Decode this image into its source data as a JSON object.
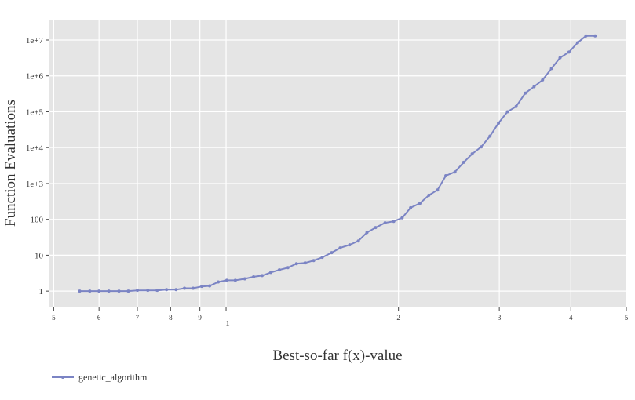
{
  "chart_data": {
    "type": "line",
    "xlabel": "Best-so-far f(x)-value",
    "ylabel": "Function Evaluations",
    "xscale": "log",
    "yscale": "log",
    "grid": true,
    "legend": "bottom-left",
    "xlim": [
      0.49,
      5.0
    ],
    "ylim": [
      0.35,
      37000000
    ],
    "xticks": [
      {
        "value": 0.5,
        "label": "5"
      },
      {
        "value": 0.6,
        "label": "6"
      },
      {
        "value": 0.7,
        "label": "7"
      },
      {
        "value": 0.8,
        "label": "8"
      },
      {
        "value": 0.9,
        "label": "9"
      },
      1,
      2,
      3,
      4,
      5
    ],
    "yticks": [
      1,
      10,
      100,
      {
        "value": 1000,
        "label": "1e+3"
      },
      {
        "value": 10000,
        "label": "1e+4"
      },
      {
        "value": 100000,
        "label": "1e+5"
      },
      {
        "value": 1000000,
        "label": "1e+6"
      },
      {
        "value": 10000000,
        "label": "1e+7"
      }
    ],
    "x": [
      0.555,
      0.578,
      0.6,
      0.624,
      0.65,
      0.675,
      0.7,
      0.73,
      0.758,
      0.787,
      0.818,
      0.846,
      0.876,
      0.907,
      0.936,
      0.969,
      1.003,
      1.038,
      1.078,
      1.117,
      1.156,
      1.197,
      1.239,
      1.282,
      1.327,
      1.374,
      1.422,
      1.472,
      1.529,
      1.582,
      1.644,
      1.702,
      1.762,
      1.824,
      1.895,
      1.962,
      2.03,
      2.1,
      2.18,
      2.26,
      2.34,
      2.42,
      2.51,
      2.6,
      2.69,
      2.79,
      2.89,
      2.99,
      3.1,
      3.21,
      3.33,
      3.45,
      3.57,
      3.7,
      3.83,
      3.97,
      4.11,
      4.25,
      4.41
    ],
    "series": [
      {
        "name": "genetic_algorithm",
        "color": "#7b84c4",
        "values": [
          1,
          1,
          1,
          1,
          1,
          1,
          1.05,
          1.05,
          1.05,
          1.1,
          1.1,
          1.2,
          1.2,
          1.35,
          1.4,
          1.8,
          2,
          2,
          2.2,
          2.5,
          2.7,
          3.3,
          3.9,
          4.5,
          5.8,
          6.1,
          7.1,
          8.7,
          11.8,
          16,
          19.5,
          25,
          43,
          59,
          80,
          88,
          110,
          210,
          280,
          470,
          660,
          1650,
          2100,
          3900,
          6700,
          10500,
          21000,
          48000,
          100000,
          140000,
          330000,
          500000,
          770000,
          1600000,
          3200000,
          4600000,
          8400000,
          13000000,
          13000000
        ]
      }
    ]
  }
}
